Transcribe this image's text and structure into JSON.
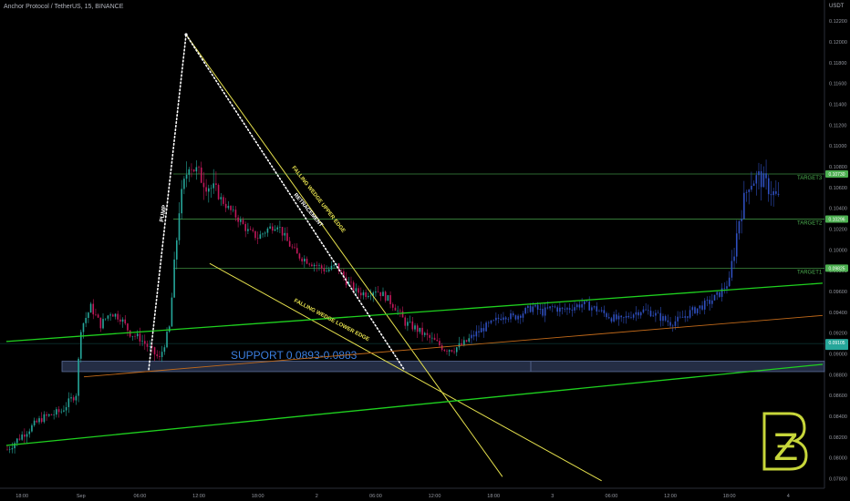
{
  "header": {
    "title": "Anchor Protocol / TetherUS, 15, BINANCE",
    "unit": "USDT"
  },
  "colors": {
    "up": "#26a69a",
    "down": "#c2185b",
    "post": "#2f4fbf",
    "wedge": "#e6e14d",
    "channel": "#1fd11f",
    "orange": "#c26a1a",
    "target": "#4caf50",
    "support": "#3b7fe0"
  },
  "chart_data": {
    "type": "candlestick",
    "title": "Anchor Protocol / TetherUS, 15, BINANCE",
    "y_unit": "USDT",
    "ylim": [
      0.0777,
      0.1228
    ],
    "y_ticks": [
      "0.12200",
      "0.12000",
      "0.11800",
      "0.11600",
      "0.11400",
      "0.11200",
      "0.11000",
      "0.10800",
      "0.10600",
      "0.10400",
      "0.10200",
      "0.10000",
      "0.09800",
      "0.09600",
      "0.09400",
      "0.09200",
      "0.09000",
      "0.08800",
      "0.08600",
      "0.08400",
      "0.08200",
      "0.08000",
      "0.07800"
    ],
    "x_ticks": [
      {
        "label": "18:00",
        "t": 0
      },
      {
        "label": "Sep",
        "t": 6
      },
      {
        "label": "06:00",
        "t": 12
      },
      {
        "label": "12:00",
        "t": 18
      },
      {
        "label": "18:00",
        "t": 24
      },
      {
        "label": "2",
        "t": 30
      },
      {
        "label": "06:00",
        "t": 36
      },
      {
        "label": "12:00",
        "t": 42
      },
      {
        "label": "18:00",
        "t": 48
      },
      {
        "label": "3",
        "t": 54
      },
      {
        "label": "06:00",
        "t": 60
      },
      {
        "label": "12:00",
        "t": 66
      },
      {
        "label": "18:00",
        "t": 72
      },
      {
        "label": "4",
        "t": 78
      }
    ],
    "x_max": 81.5,
    "price_path": [
      {
        "t": -1.5,
        "p": 0.0808
      },
      {
        "t": 0,
        "p": 0.0822
      },
      {
        "t": 2,
        "p": 0.0838
      },
      {
        "t": 4,
        "p": 0.0845
      },
      {
        "t": 5.5,
        "p": 0.0862
      },
      {
        "t": 6,
        "p": 0.0925
      },
      {
        "t": 7,
        "p": 0.0945
      },
      {
        "t": 8,
        "p": 0.0928
      },
      {
        "t": 9,
        "p": 0.094
      },
      {
        "t": 10,
        "p": 0.0935
      },
      {
        "t": 11,
        "p": 0.092
      },
      {
        "t": 12,
        "p": 0.0915
      },
      {
        "t": 13,
        "p": 0.0905
      },
      {
        "t": 14,
        "p": 0.0895
      },
      {
        "t": 15,
        "p": 0.0925
      },
      {
        "t": 16,
        "p": 0.104
      },
      {
        "t": 17,
        "p": 0.1085
      },
      {
        "t": 18,
        "p": 0.1072
      },
      {
        "t": 19,
        "p": 0.1062
      },
      {
        "t": 20,
        "p": 0.1052
      },
      {
        "t": 21,
        "p": 0.104
      },
      {
        "t": 22,
        "p": 0.103
      },
      {
        "t": 23,
        "p": 0.1018
      },
      {
        "t": 24,
        "p": 0.1012
      },
      {
        "t": 25,
        "p": 0.102
      },
      {
        "t": 26,
        "p": 0.1025
      },
      {
        "t": 27,
        "p": 0.1008
      },
      {
        "t": 28,
        "p": 0.0995
      },
      {
        "t": 29,
        "p": 0.099
      },
      {
        "t": 30,
        "p": 0.0985
      },
      {
        "t": 31,
        "p": 0.098
      },
      {
        "t": 32,
        "p": 0.0985
      },
      {
        "t": 33,
        "p": 0.097
      },
      {
        "t": 34,
        "p": 0.096
      },
      {
        "t": 35,
        "p": 0.0958
      },
      {
        "t": 36,
        "p": 0.0962
      },
      {
        "t": 37,
        "p": 0.0955
      },
      {
        "t": 38,
        "p": 0.0945
      },
      {
        "t": 39,
        "p": 0.093
      },
      {
        "t": 40,
        "p": 0.0925
      },
      {
        "t": 41,
        "p": 0.0918
      },
      {
        "t": 42,
        "p": 0.0912
      },
      {
        "t": 43,
        "p": 0.0905
      },
      {
        "t": 44,
        "p": 0.0905
      },
      {
        "t": 45,
        "p": 0.091
      },
      {
        "t": 46,
        "p": 0.0918
      },
      {
        "t": 47,
        "p": 0.0925
      },
      {
        "t": 48,
        "p": 0.093
      },
      {
        "t": 49,
        "p": 0.0938
      },
      {
        "t": 50,
        "p": 0.0935
      },
      {
        "t": 51,
        "p": 0.094
      },
      {
        "t": 52,
        "p": 0.0945
      },
      {
        "t": 53,
        "p": 0.094
      },
      {
        "t": 54,
        "p": 0.0945
      },
      {
        "t": 55,
        "p": 0.0942
      },
      {
        "t": 56,
        "p": 0.0945
      },
      {
        "t": 57,
        "p": 0.0948
      },
      {
        "t": 58,
        "p": 0.0945
      },
      {
        "t": 59,
        "p": 0.094
      },
      {
        "t": 60,
        "p": 0.0935
      },
      {
        "t": 61,
        "p": 0.0932
      },
      {
        "t": 62,
        "p": 0.0938
      },
      {
        "t": 63,
        "p": 0.0942
      },
      {
        "t": 64,
        "p": 0.094
      },
      {
        "t": 65,
        "p": 0.0935
      },
      {
        "t": 66,
        "p": 0.093
      },
      {
        "t": 67,
        "p": 0.0933
      },
      {
        "t": 68,
        "p": 0.094
      },
      {
        "t": 69,
        "p": 0.0945
      },
      {
        "t": 70,
        "p": 0.095
      },
      {
        "t": 71,
        "p": 0.0958
      },
      {
        "t": 72,
        "p": 0.097
      },
      {
        "t": 73,
        "p": 0.103
      },
      {
        "t": 74,
        "p": 0.1065
      },
      {
        "t": 75,
        "p": 0.107
      },
      {
        "t": 76,
        "p": 0.106
      },
      {
        "t": 77,
        "p": 0.1048
      }
    ],
    "levels": [
      {
        "name": "TARGET3",
        "value": 0.1073,
        "label": "0.10730"
      },
      {
        "name": "TARGET2",
        "value": 0.10296,
        "label": "0.10296"
      },
      {
        "name": "TARGET1",
        "value": 0.09825,
        "label": "0.09825"
      }
    ],
    "current_price": {
      "value": 0.091,
      "label": "0.09105"
    },
    "support": {
      "label": "SUPPORT 0.0893-0.0883",
      "from": 0.0893,
      "to": 0.0883
    },
    "annotations": {
      "pump": "PUMP",
      "retracement": "RETRACEMENT",
      "upper_edge": "FALLING WEDGE UPPER EDGE",
      "lower_edge": "FALLING WEDGE LOWER EDGE"
    },
    "trendlines": [
      {
        "name": "wedge-upper",
        "p1": {
          "t": 16.7,
          "p": 0.1207
        },
        "p2": {
          "t": 48.9,
          "p": 0.0782
        }
      },
      {
        "name": "wedge-lower",
        "p1": {
          "t": 19.1,
          "p": 0.0987
        },
        "p2": {
          "t": 59,
          "p": 0.0778
        }
      },
      {
        "name": "channel-upper",
        "p1": {
          "t": -1.6,
          "p": 0.0912
        },
        "p2": {
          "t": 81.5,
          "p": 0.0968
        }
      },
      {
        "name": "channel-lower",
        "p1": {
          "t": -1.6,
          "p": 0.0812
        },
        "p2": {
          "t": 81.5,
          "p": 0.089
        }
      },
      {
        "name": "orange-line",
        "p1": {
          "t": 6.3,
          "p": 0.0878
        },
        "p2": {
          "t": 81.5,
          "p": 0.0937
        }
      },
      {
        "name": "pump-line",
        "p1": {
          "t": 12.9,
          "p": 0.0885
        },
        "p2": {
          "t": 16.7,
          "p": 0.1207
        }
      },
      {
        "name": "retracement-line",
        "p1": {
          "t": 16.7,
          "p": 0.1207
        },
        "p2": {
          "t": 38.9,
          "p": 0.0885
        }
      }
    ]
  },
  "logo": {
    "symbol": "Ƶ"
  }
}
